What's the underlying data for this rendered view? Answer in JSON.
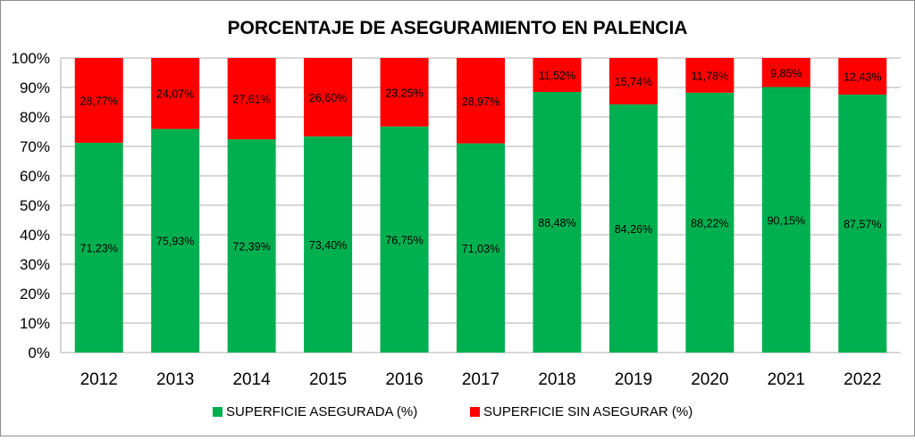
{
  "chart_data": {
    "type": "bar",
    "stacked": true,
    "title": "PORCENTAJE DE ASEGURAMIENTO EN PALENCIA",
    "xlabel": "",
    "ylabel": "",
    "ylim": [
      0,
      100
    ],
    "yticks": [
      "0%",
      "10%",
      "20%",
      "30%",
      "40%",
      "50%",
      "60%",
      "70%",
      "80%",
      "90%",
      "100%"
    ],
    "grid": true,
    "legend_position": "bottom",
    "categories": [
      "2012",
      "2013",
      "2014",
      "2015",
      "2016",
      "2017",
      "2018",
      "2019",
      "2020",
      "2021",
      "2022"
    ],
    "series": [
      {
        "name": "SUPERFICIE ASEGURADA (%)",
        "color": "#00B050",
        "values": [
          71.23,
          75.93,
          72.39,
          73.4,
          76.75,
          71.03,
          88.48,
          84.26,
          88.22,
          90.15,
          87.57
        ],
        "labels": [
          "71,23%",
          "75,93%",
          "72,39%",
          "73,40%",
          "76,75%",
          "71,03%",
          "88,48%",
          "84,26%",
          "88,22%",
          "90,15%",
          "87,57%"
        ]
      },
      {
        "name": "SUPERFICIE SIN ASEGURAR (%)",
        "color": "#FF0000",
        "values": [
          28.77,
          24.07,
          27.61,
          26.6,
          23.25,
          28.97,
          11.52,
          15.74,
          11.78,
          9.85,
          12.43
        ],
        "labels": [
          "28,77%",
          "24,07%",
          "27,61%",
          "26,60%",
          "23,25%",
          "28,97%",
          "11,52%",
          "15,74%",
          "11,78%",
          "9,85%",
          "12,43%"
        ]
      }
    ]
  }
}
